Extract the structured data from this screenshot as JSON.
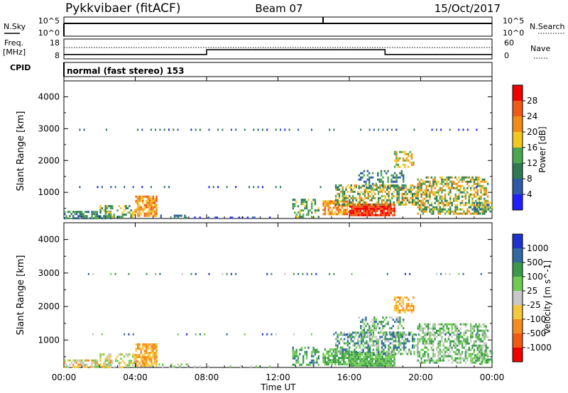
{
  "header": {
    "radar": "Pykkvibaer (fitACF)",
    "beam": "Beam 07",
    "date": "15/Oct/2017"
  },
  "colors": {
    "power": [
      "#1f1fff",
      "#2e5aa8",
      "#2f7a55",
      "#4ca850",
      "#f2c81e",
      "#f28c14",
      "#f05a14",
      "#f00000"
    ],
    "velocity": [
      "#f00000",
      "#f25a14",
      "#f58c1e",
      "#f5c83c",
      "#c8c8c8",
      "#70cc50",
      "#3a9a4a",
      "#2f6aa0",
      "#1f32d0"
    ]
  },
  "chart_data": [
    {
      "type": "line",
      "panel": "nsky-nsearch",
      "labels": {
        "left": "N.Sky",
        "right": "N.Search"
      },
      "left_ticks": [
        "10^5",
        "10^0"
      ],
      "right_ticks": [
        "10^5",
        "10^0"
      ],
      "series": [
        {
          "values_description_level": 0.65
        }
      ],
      "spike_at_hour": 14.6
    },
    {
      "type": "line",
      "panel": "freq-nave",
      "labels": {
        "left_top": "Freq.",
        "left_bottom": "[MHz]",
        "right": "Nave",
        "cpid": "CPID"
      },
      "left_ticks": [
        "18",
        "8"
      ],
      "right_ticks": [
        "60",
        "0"
      ],
      "freq_steps": [
        {
          "from": 0,
          "to": 8,
          "mhz": 10.2
        },
        {
          "from": 8,
          "to": 18,
          "mhz": 12.6
        },
        {
          "from": 18,
          "to": 24,
          "mhz": 10.2
        }
      ]
    },
    {
      "type": "text",
      "panel": "cpid",
      "value": "normal (fast stereo) 153"
    },
    {
      "type": "heatmap",
      "panel": "power",
      "ylabel": "Slant Range [km]",
      "ylim": [
        180,
        4500
      ],
      "yticks": [
        "4000",
        "3000",
        "2000",
        "1000"
      ],
      "colorbar_label": "Power [dB]",
      "colorbar_ticks": [
        "28",
        "24",
        "20",
        "16",
        "12",
        "8",
        "4"
      ]
    },
    {
      "type": "heatmap",
      "panel": "velocity",
      "ylabel": "Slant Range [km]",
      "ylim": [
        180,
        4500
      ],
      "yticks": [
        "4000",
        "3000",
        "2000",
        "1000"
      ],
      "colorbar_label": "Velocity [m s^-1]",
      "colorbar_ticks": [
        "1000",
        "500",
        "100",
        "25",
        "-25",
        "-100",
        "-500",
        "-1000"
      ],
      "xlabel": "Time UT",
      "xticks": [
        "00:00",
        "04:00",
        "08:00",
        "12:00",
        "16:00",
        "20:00",
        "00:00"
      ]
    }
  ]
}
